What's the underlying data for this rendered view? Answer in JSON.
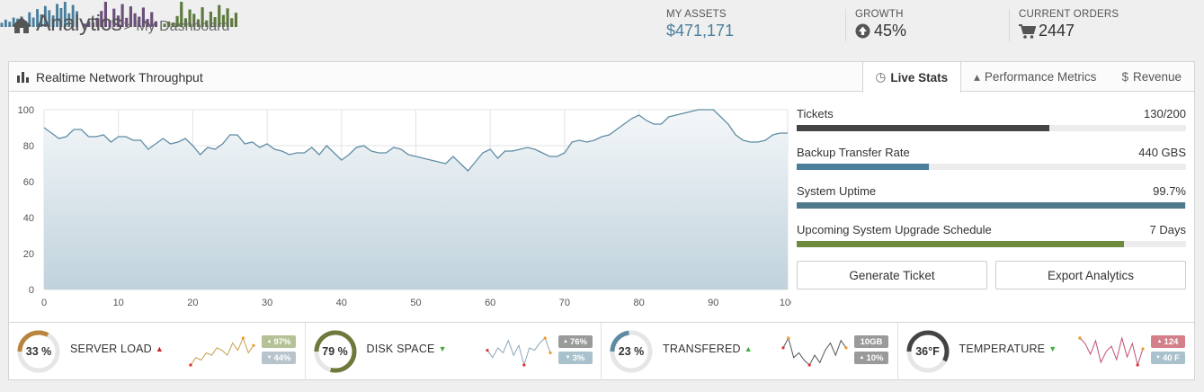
{
  "header": {
    "title": "Analytics",
    "subtitle": "> My Dashboard",
    "stats": [
      {
        "label": "MY ASSETS",
        "value": "$471,171",
        "icon": "none",
        "color": "#4a7e9b",
        "bars": [
          4,
          7,
          5,
          9,
          8,
          10,
          6,
          14,
          9,
          17,
          12,
          20,
          16,
          11,
          22,
          18,
          24,
          13,
          21,
          15
        ]
      },
      {
        "label": "GROWTH",
        "value": "45%",
        "icon": "arrow-up-circle-icon",
        "color": "#6b4f7a",
        "bars": [
          3,
          5,
          4,
          8,
          14,
          22,
          6,
          16,
          10,
          20,
          8,
          18,
          12,
          9,
          17,
          7,
          13,
          5
        ]
      },
      {
        "label": "CURRENT ORDERS",
        "value": "2447",
        "icon": "cart-icon",
        "color": "#5c7a3c",
        "bars": [
          3,
          5,
          4,
          10,
          23,
          8,
          16,
          12,
          7,
          18,
          6,
          14,
          9,
          20,
          11,
          17,
          8,
          13
        ]
      }
    ]
  },
  "panel": {
    "title": "Realtime Network Throughput",
    "tabs": [
      {
        "label": "Live Stats",
        "icon": "clock-icon",
        "glyph": "◷",
        "active": true
      },
      {
        "label": "Performance Metrics",
        "icon": "triangle-up-icon",
        "glyph": "▴",
        "active": false
      },
      {
        "label": "Revenue",
        "icon": "dollar-icon",
        "glyph": "$",
        "active": false
      }
    ],
    "metrics": [
      {
        "label": "Tickets",
        "value": "130/200",
        "fraction": 0.65,
        "color": "#444444"
      },
      {
        "label": "Backup Transfer Rate",
        "value": "440 GBS",
        "fraction": 0.34,
        "color": "#4a7e9b"
      },
      {
        "label": "System Uptime",
        "value": "99.7%",
        "fraction": 0.997,
        "color": "#4f7a8c"
      },
      {
        "label": "Upcoming System Upgrade Schedule",
        "value": "7 Days",
        "fraction": 0.84,
        "color": "#6e8a3c"
      }
    ],
    "buttons": {
      "generate": "Generate Ticket",
      "export": "Export Analytics"
    }
  },
  "chart_data": {
    "type": "area",
    "xlim": [
      0,
      100
    ],
    "ylim": [
      0,
      100
    ],
    "xticks": [
      0,
      10,
      20,
      30,
      40,
      50,
      60,
      70,
      80,
      90,
      100
    ],
    "yticks": [
      0,
      20,
      40,
      60,
      80,
      100
    ],
    "grid": true,
    "x": [
      0,
      1,
      2,
      3,
      4,
      5,
      6,
      7,
      8,
      9,
      10,
      11,
      12,
      13,
      14,
      15,
      16,
      17,
      18,
      19,
      20,
      21,
      22,
      23,
      24,
      25,
      26,
      27,
      28,
      29,
      30,
      31,
      32,
      33,
      34,
      35,
      36,
      37,
      38,
      39,
      40,
      41,
      42,
      43,
      44,
      45,
      46,
      47,
      48,
      49,
      50,
      51,
      52,
      53,
      54,
      55,
      56,
      57,
      58,
      59,
      60,
      61,
      62,
      63,
      64,
      65,
      66,
      67,
      68,
      69,
      70,
      71,
      72,
      73,
      74,
      75,
      76,
      77,
      78,
      79,
      80,
      81,
      82,
      83,
      84,
      85,
      86,
      87,
      88,
      89,
      90,
      91,
      92,
      93,
      94,
      95,
      96,
      97,
      98,
      99,
      100
    ],
    "y": [
      90,
      87,
      84,
      85,
      89,
      89,
      85,
      85,
      86,
      82,
      85,
      85,
      83,
      83,
      78,
      81,
      84,
      81,
      82,
      84,
      80,
      75,
      79,
      78,
      81,
      86,
      86,
      81,
      82,
      79,
      81,
      78,
      77,
      75,
      76,
      76,
      79,
      75,
      80,
      76,
      72,
      75,
      79,
      80,
      77,
      76,
      76,
      79,
      78,
      75,
      74,
      73,
      72,
      71,
      70,
      74,
      70,
      66,
      71,
      76,
      78,
      73,
      77,
      77,
      78,
      79,
      78,
      76,
      74,
      74,
      76,
      82,
      83,
      82,
      83,
      85,
      86,
      89,
      92,
      95,
      97,
      94,
      92,
      92,
      96,
      97,
      98,
      99,
      100,
      100,
      100,
      96,
      92,
      86,
      83,
      82,
      82,
      83,
      86,
      87,
      87
    ]
  },
  "footer": [
    {
      "value": "33 %",
      "name": "SERVER LOAD",
      "trend": "up",
      "pct": 0.33,
      "ring_color": "#b8843e",
      "tri_color": "#cc2222",
      "spark": [
        2,
        5,
        4,
        7,
        6,
        9,
        8,
        6,
        11,
        8,
        13,
        7,
        10
      ],
      "spark_color": "#c8a04e",
      "badge1": "97%",
      "badge2": "44%",
      "b1color": "#b5c196",
      "b2color": "#b8c4cc"
    },
    {
      "value": "79 %",
      "name": "DISK SPACE",
      "trend": "down",
      "pct": 0.79,
      "ring_color": "#6e7a3c",
      "tri_color": "#3fae3f",
      "spark": [
        8,
        5,
        9,
        7,
        12,
        6,
        10,
        2,
        9,
        8,
        11,
        13,
        7
      ],
      "spark_color": "#8ca6b8",
      "badge1": "76%",
      "badge2": "3%",
      "b1color": "#9a9a9a",
      "b2color": "#a9c1cc"
    },
    {
      "value": "23 %",
      "name": "TRANSFERED",
      "trend": "up",
      "pct": 0.23,
      "ring_color": "#5e8aa2",
      "tri_color": "#3fae3f",
      "spark": [
        9,
        13,
        5,
        7,
        4,
        2,
        6,
        3,
        8,
        11,
        6,
        12,
        9
      ],
      "spark_color": "#555555",
      "badge1": "10GB",
      "badge2": "10%",
      "b1color": "#9a9a9a",
      "b2color": "#9a9a9a"
    },
    {
      "value": "36°F",
      "name": "TEMPERATURE",
      "trend": "down",
      "pct": 0.58,
      "ring_color": "#444444",
      "tri_color": "#3fae3f",
      "spark": [
        12,
        10,
        6,
        11,
        3,
        7,
        9,
        4,
        12,
        5,
        10,
        2,
        8
      ],
      "spark_color": "#c0506e",
      "badge1": "124",
      "badge2": "40 F",
      "b1color": "#d4808a",
      "b2color": "#a9c1cc"
    }
  ]
}
